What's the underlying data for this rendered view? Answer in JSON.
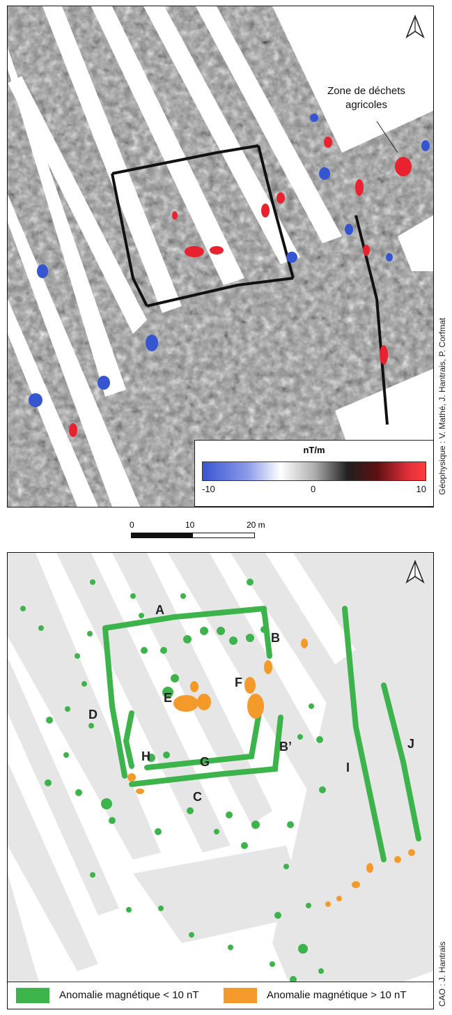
{
  "top_panel": {
    "annotation_line1": "Zone de déchets",
    "annotation_line2": "agricoles",
    "legend": {
      "title": "nT/m",
      "ticks": [
        "-10",
        "0",
        "10"
      ]
    },
    "credit": "Géophysique : V. Mathé, J. Hantrais, P. Corfmat"
  },
  "scale_bar": {
    "labels": [
      "0",
      "10",
      "20 m"
    ]
  },
  "bottom_panel": {
    "letters": [
      "A",
      "B",
      "B’",
      "C",
      "D",
      "E",
      "F",
      "G",
      "H",
      "I",
      "J"
    ],
    "legend": {
      "green_label": "Anomalie magnétique < 10 nT",
      "orange_label": "Anomalie magnétique > 10 nT"
    },
    "credit": "CAO : J. Hantrais"
  },
  "colors": {
    "green": "#3cb44b",
    "orange": "#f39a2b",
    "stripe": "#e6e6e6",
    "red": "#e8222e",
    "blue": "#3556d0"
  }
}
